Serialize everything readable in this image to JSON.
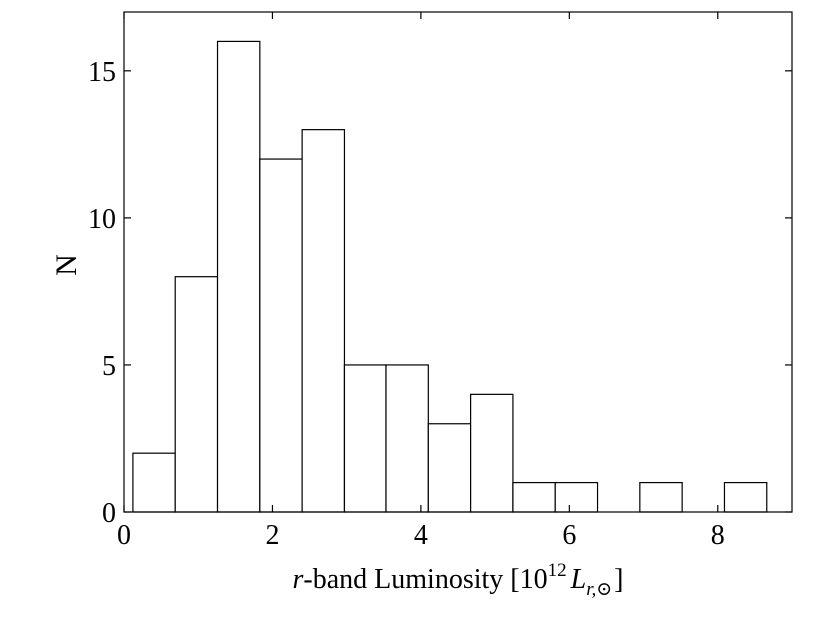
{
  "chart_data": {
    "type": "bar",
    "title": "",
    "xlabel": "r-band Luminosity [10^12 L_r,⊙]",
    "xlabel_parts": {
      "italic_r": "r",
      "text_band": "-band Luminosity [10",
      "exponent": "12",
      "italic_L": "L",
      "subscript": "r,⊙",
      "close": "]"
    },
    "ylabel": "N",
    "xlim": [
      0,
      9
    ],
    "ylim": [
      0,
      17
    ],
    "xticks": [
      0,
      2,
      4,
      6,
      8
    ],
    "xtick_labels": [
      "0",
      "2",
      "4",
      "6",
      "8"
    ],
    "yticks": [
      0,
      5,
      10,
      15
    ],
    "ytick_labels": [
      "0",
      "5",
      "10",
      "15"
    ],
    "grid": false,
    "bin_edges": [
      0.12,
      0.69,
      1.26,
      1.83,
      2.4,
      2.97,
      3.53,
      4.1,
      4.67,
      5.24,
      5.81,
      6.38,
      6.95,
      7.52,
      8.09,
      8.66
    ],
    "values": [
      2,
      8,
      16,
      12,
      13,
      5,
      5,
      3,
      4,
      1,
      1,
      0,
      1,
      0,
      1
    ]
  }
}
